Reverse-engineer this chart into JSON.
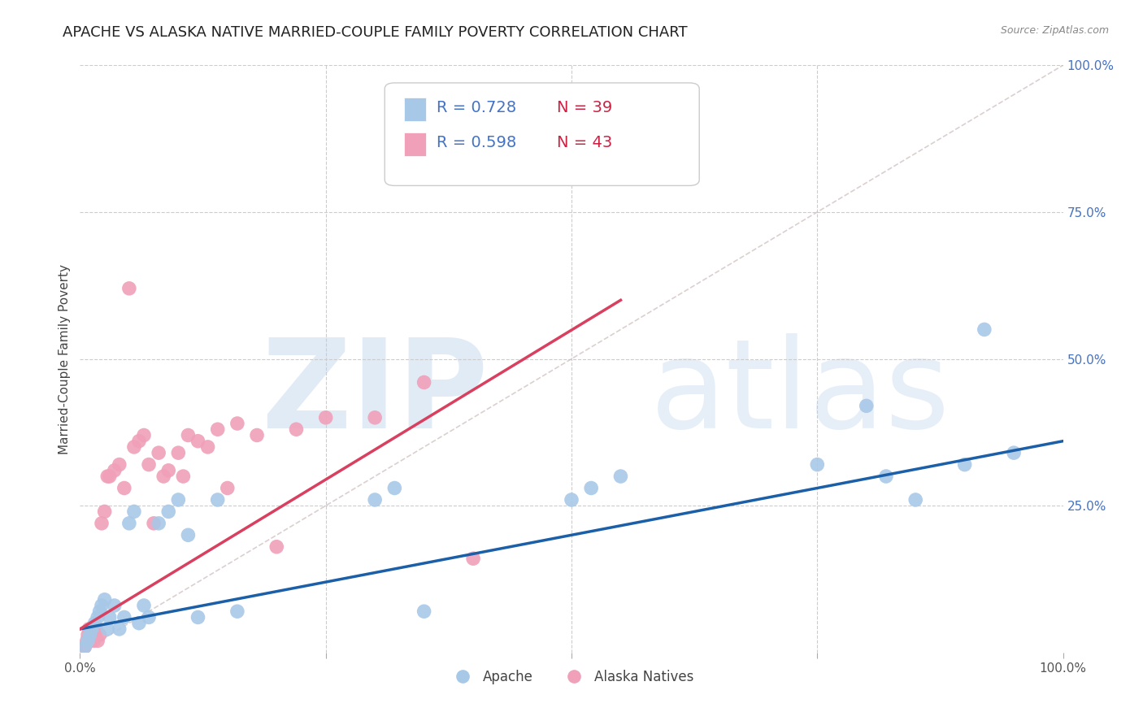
{
  "title": "APACHE VS ALASKA NATIVE MARRIED-COUPLE FAMILY POVERTY CORRELATION CHART",
  "source": "Source: ZipAtlas.com",
  "ylabel": "Married-Couple Family Poverty",
  "xlim": [
    0.0,
    1.0
  ],
  "ylim": [
    0.0,
    1.0
  ],
  "watermark_zip": "ZIP",
  "watermark_atlas": "atlas",
  "legend_apache_r": "R = 0.728",
  "legend_apache_n": "N = 39",
  "legend_alaska_r": "R = 0.598",
  "legend_alaska_n": "N = 43",
  "apache_color": "#a8c8e8",
  "alaska_color": "#f0a0b8",
  "apache_line_color": "#1a5fa8",
  "alaska_line_color": "#d94060",
  "diagonal_color": "#ccbbbb",
  "grid_color": "#cccccc",
  "background_color": "#ffffff",
  "title_fontsize": 13,
  "axis_label_fontsize": 11,
  "tick_fontsize": 11,
  "legend_fontsize": 14,
  "apache_scatter_x": [
    0.005,
    0.008,
    0.01,
    0.012,
    0.015,
    0.018,
    0.02,
    0.022,
    0.025,
    0.028,
    0.03,
    0.035,
    0.04,
    0.045,
    0.05,
    0.055,
    0.06,
    0.065,
    0.07,
    0.08,
    0.09,
    0.1,
    0.11,
    0.12,
    0.14,
    0.16,
    0.3,
    0.32,
    0.35,
    0.5,
    0.52,
    0.55,
    0.75,
    0.8,
    0.82,
    0.85,
    0.9,
    0.92,
    0.95
  ],
  "apache_scatter_y": [
    0.01,
    0.02,
    0.03,
    0.04,
    0.05,
    0.06,
    0.07,
    0.08,
    0.09,
    0.04,
    0.06,
    0.08,
    0.04,
    0.06,
    0.22,
    0.24,
    0.05,
    0.08,
    0.06,
    0.22,
    0.24,
    0.26,
    0.2,
    0.06,
    0.26,
    0.07,
    0.26,
    0.28,
    0.07,
    0.26,
    0.28,
    0.3,
    0.32,
    0.42,
    0.3,
    0.26,
    0.32,
    0.55,
    0.34
  ],
  "alaska_scatter_x": [
    0.005,
    0.007,
    0.008,
    0.009,
    0.01,
    0.012,
    0.013,
    0.014,
    0.015,
    0.016,
    0.018,
    0.02,
    0.022,
    0.025,
    0.028,
    0.03,
    0.035,
    0.04,
    0.045,
    0.05,
    0.055,
    0.06,
    0.065,
    0.07,
    0.075,
    0.08,
    0.085,
    0.09,
    0.1,
    0.105,
    0.11,
    0.12,
    0.13,
    0.14,
    0.15,
    0.16,
    0.18,
    0.2,
    0.22,
    0.25,
    0.3,
    0.35,
    0.4
  ],
  "alaska_scatter_y": [
    0.01,
    0.02,
    0.03,
    0.04,
    0.02,
    0.03,
    0.04,
    0.02,
    0.03,
    0.04,
    0.02,
    0.03,
    0.22,
    0.24,
    0.3,
    0.3,
    0.31,
    0.32,
    0.28,
    0.62,
    0.35,
    0.36,
    0.37,
    0.32,
    0.22,
    0.34,
    0.3,
    0.31,
    0.34,
    0.3,
    0.37,
    0.36,
    0.35,
    0.38,
    0.28,
    0.39,
    0.37,
    0.18,
    0.38,
    0.4,
    0.4,
    0.46,
    0.16
  ],
  "apache_line_x0": 0.0,
  "apache_line_y0": 0.04,
  "apache_line_x1": 1.0,
  "apache_line_y1": 0.36,
  "alaska_line_x0": 0.0,
  "alaska_line_y0": 0.04,
  "alaska_line_x1": 0.55,
  "alaska_line_y1": 0.6
}
